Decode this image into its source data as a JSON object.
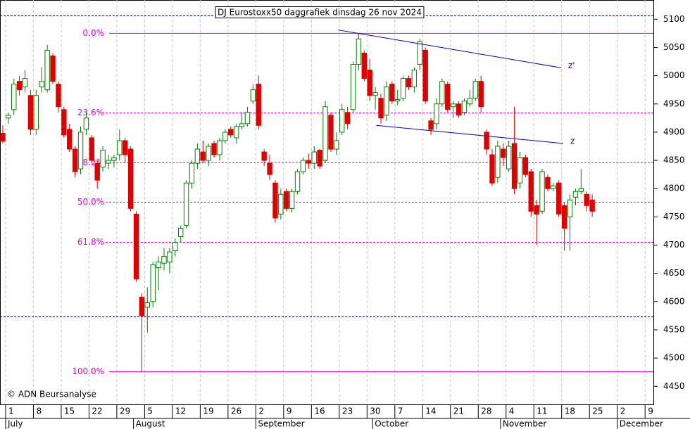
{
  "chart_data": {
    "type": "candlestick",
    "title": "DJ Eurostoxx50 daggrafiek dinsdag 26 nov 2024",
    "credit": "© ADN Beursanalyse",
    "xlim": [
      -0.5,
      117
    ],
    "ylim": [
      4418,
      5134
    ],
    "yticks": [
      4450,
      4500,
      4550,
      4600,
      4650,
      4700,
      4750,
      4800,
      4850,
      4900,
      4950,
      5000,
      5050,
      5100
    ],
    "xticks": [
      {
        "value": 0,
        "label": "1"
      },
      {
        "value": 5,
        "label": "8"
      },
      {
        "value": 10,
        "label": "15"
      },
      {
        "value": 15,
        "label": "22"
      },
      {
        "value": 20,
        "label": "29"
      },
      {
        "value": 25,
        "label": "5"
      },
      {
        "value": 30,
        "label": "12"
      },
      {
        "value": 35,
        "label": "19"
      },
      {
        "value": 40,
        "label": "26"
      },
      {
        "value": 45,
        "label": "2"
      },
      {
        "value": 50,
        "label": "9"
      },
      {
        "value": 55,
        "label": "16"
      },
      {
        "value": 60,
        "label": "23"
      },
      {
        "value": 65,
        "label": "30"
      },
      {
        "value": 70,
        "label": "7"
      },
      {
        "value": 75,
        "label": "14"
      },
      {
        "value": 80,
        "label": "21"
      },
      {
        "value": 85,
        "label": "28"
      },
      {
        "value": 90,
        "label": "4"
      },
      {
        "value": 95,
        "label": "11"
      },
      {
        "value": 100,
        "label": "18"
      },
      {
        "value": 105,
        "label": "25"
      },
      {
        "value": 110,
        "label": "2"
      },
      {
        "value": 115,
        "label": "9"
      }
    ],
    "months": [
      {
        "value": 0,
        "label": "July"
      },
      {
        "value": 23,
        "label": "August"
      },
      {
        "value": 45,
        "label": "September"
      },
      {
        "value": 66,
        "label": "October"
      },
      {
        "value": 89,
        "label": "November"
      },
      {
        "value": 110,
        "label": "December"
      }
    ],
    "up_color": "#008000",
    "down_color": "#e00000",
    "candles": [
      [
        4898,
        4912,
        4880,
        4884
      ],
      [
        4925,
        4935,
        4915,
        4930
      ],
      [
        4940,
        4995,
        4930,
        4985
      ],
      [
        4990,
        5000,
        4965,
        4975
      ],
      [
        4980,
        5010,
        4970,
        4995
      ],
      [
        4965,
        4975,
        4895,
        4905
      ],
      [
        4905,
        4975,
        4895,
        4965
      ],
      [
        4980,
        5015,
        4970,
        4990
      ],
      [
        4975,
        5055,
        4970,
        5045
      ],
      [
        5035,
        5040,
        4985,
        4990
      ],
      [
        4985,
        4990,
        4935,
        4945
      ],
      [
        4940,
        4945,
        4890,
        4895
      ],
      [
        4905,
        4915,
        4865,
        4870
      ],
      [
        4870,
        4875,
        4820,
        4830
      ],
      [
        4835,
        4910,
        4825,
        4900
      ],
      [
        4905,
        4935,
        4895,
        4925
      ],
      [
        4890,
        4895,
        4845,
        4850
      ],
      [
        4845,
        4850,
        4800,
        4815
      ],
      [
        4838,
        4875,
        4830,
        4868
      ],
      [
        4845,
        4860,
        4835,
        4850
      ],
      [
        4850,
        4860,
        4838,
        4855
      ],
      [
        4860,
        4905,
        4850,
        4885
      ],
      [
        4885,
        4890,
        4845,
        4860
      ],
      [
        4870,
        4875,
        4760,
        4765
      ],
      [
        4755,
        4760,
        4635,
        4640
      ],
      [
        4608,
        4615,
        4476,
        4575
      ],
      [
        4590,
        4625,
        4545,
        4598
      ],
      [
        4600,
        4670,
        4590,
        4665
      ],
      [
        4660,
        4680,
        4620,
        4670
      ],
      [
        4668,
        4695,
        4655,
        4680
      ],
      [
        4670,
        4695,
        4650,
        4688
      ],
      [
        4690,
        4712,
        4680,
        4705
      ],
      [
        4715,
        4735,
        4705,
        4730
      ],
      [
        4735,
        4815,
        4730,
        4810
      ],
      [
        4810,
        4850,
        4800,
        4845
      ],
      [
        4845,
        4880,
        4835,
        4870
      ],
      [
        4865,
        4885,
        4845,
        4850
      ],
      [
        4850,
        4880,
        4840,
        4875
      ],
      [
        4880,
        4885,
        4855,
        4860
      ],
      [
        4860,
        4890,
        4850,
        4885
      ],
      [
        4885,
        4905,
        4880,
        4900
      ],
      [
        4905,
        4910,
        4890,
        4895
      ],
      [
        4890,
        4915,
        4880,
        4910
      ],
      [
        4910,
        4935,
        4905,
        4915
      ],
      [
        4915,
        4945,
        4910,
        4935
      ],
      [
        4955,
        4985,
        4950,
        4975
      ],
      [
        4985,
        5000,
        4905,
        4912
      ],
      [
        4865,
        4870,
        4840,
        4850
      ],
      [
        4845,
        4860,
        4815,
        4825
      ],
      [
        4810,
        4815,
        4740,
        4748
      ],
      [
        4755,
        4800,
        4745,
        4790
      ],
      [
        4795,
        4800,
        4760,
        4765
      ],
      [
        4765,
        4800,
        4758,
        4795
      ],
      [
        4795,
        4835,
        4790,
        4830
      ],
      [
        4830,
        4855,
        4825,
        4850
      ],
      [
        4850,
        4862,
        4835,
        4845
      ],
      [
        4845,
        4875,
        4835,
        4865
      ],
      [
        4868,
        4870,
        4835,
        4840
      ],
      [
        4850,
        4955,
        4845,
        4945
      ],
      [
        4930,
        4935,
        4865,
        4870
      ],
      [
        4870,
        4900,
        4860,
        4885
      ],
      [
        4900,
        4950,
        4895,
        4940
      ],
      [
        4935,
        4945,
        4905,
        4915
      ],
      [
        4940,
        5025,
        4935,
        5020
      ],
      [
        5020,
        5075,
        5010,
        5065
      ],
      [
        5040,
        5045,
        4990,
        4995
      ],
      [
        5010,
        5030,
        4955,
        4965
      ],
      [
        4965,
        4980,
        4940,
        4970
      ],
      [
        4960,
        4968,
        4915,
        4925
      ],
      [
        4930,
        4990,
        4920,
        4980
      ],
      [
        4985,
        4990,
        4950,
        4955
      ],
      [
        4955,
        4975,
        4948,
        4958
      ],
      [
        4960,
        5000,
        4955,
        4995
      ],
      [
        4995,
        5000,
        4975,
        4980
      ],
      [
        4980,
        5015,
        4970,
        5010
      ],
      [
        5020,
        5065,
        5010,
        5060
      ],
      [
        5045,
        5050,
        4950,
        4955
      ],
      [
        4920,
        4925,
        4895,
        4905
      ],
      [
        4915,
        4960,
        4905,
        4950
      ],
      [
        4950,
        4995,
        4945,
        4990
      ],
      [
        4985,
        4990,
        4935,
        4940
      ],
      [
        4945,
        4955,
        4925,
        4950
      ],
      [
        4950,
        4955,
        4925,
        4930
      ],
      [
        4935,
        4960,
        4930,
        4955
      ],
      [
        4950,
        4975,
        4945,
        4960
      ],
      [
        4960,
        4995,
        4955,
        4990
      ],
      [
        4990,
        5000,
        4935,
        4945
      ],
      [
        4900,
        4905,
        4860,
        4870
      ],
      [
        4860,
        4870,
        4805,
        4810
      ],
      [
        4820,
        4885,
        4810,
        4875
      ],
      [
        4870,
        4880,
        4840,
        4855
      ],
      [
        4835,
        4885,
        4830,
        4875
      ],
      [
        4880,
        4945,
        4790,
        4800
      ],
      [
        4810,
        4865,
        4800,
        4855
      ],
      [
        4855,
        4860,
        4820,
        4825
      ],
      [
        4830,
        4835,
        4750,
        4760
      ],
      [
        4770,
        4780,
        4700,
        4755
      ],
      [
        4760,
        4835,
        4755,
        4830
      ],
      [
        4820,
        4825,
        4795,
        4800
      ],
      [
        4800,
        4810,
        4795,
        4805
      ],
      [
        4810,
        4815,
        4750,
        4755
      ],
      [
        4770,
        4775,
        4690,
        4730
      ],
      [
        4750,
        4790,
        4690,
        4780
      ],
      [
        4785,
        4800,
        4770,
        4795
      ],
      [
        4795,
        4835,
        4790,
        4800
      ],
      [
        4790,
        4795,
        4760,
        4770
      ],
      [
        4780,
        4790,
        4750,
        4760
      ]
    ],
    "fib_color": "#e000e0",
    "fib_levels": [
      {
        "label": "0.0%",
        "value": 5075
      },
      {
        "label": "23.6%",
        "value": 4934
      },
      {
        "label": "38.2%",
        "value": 4846
      },
      {
        "label": "50.0%",
        "value": 4776
      },
      {
        "label": "61.8%",
        "value": 4705
      },
      {
        "label": "100.0%",
        "value": 4476
      }
    ],
    "level_color": "#000080",
    "levels": [
      5106,
      4573
    ],
    "trend_color": "#0000c0",
    "trendlines": [
      {
        "name": "z'",
        "points": [
          [
            60.3,
            5081
          ],
          [
            100.4,
            5014
          ]
        ]
      },
      {
        "name": "z",
        "points": [
          [
            67.2,
            4912
          ],
          [
            100.8,
            4880
          ]
        ]
      }
    ]
  }
}
